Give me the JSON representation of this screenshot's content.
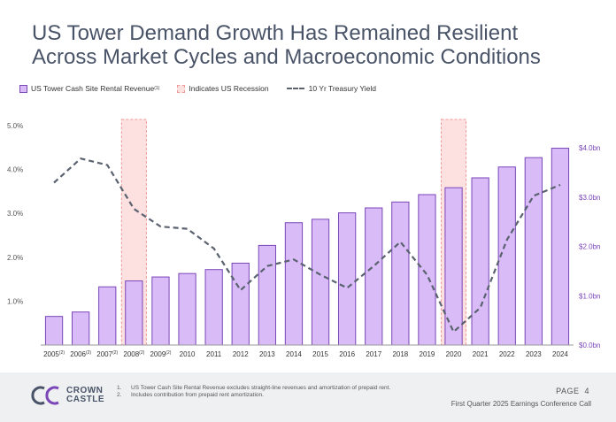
{
  "title": {
    "line1": "US Tower Demand Growth Has Remained Resilient",
    "line2": "Across Market Cycles and Macroeconomic Conditions"
  },
  "legend": {
    "revenue": "US Tower Cash Site Rental Revenue",
    "revenue_sup": "(1)",
    "recession": "Indicates US Recession",
    "treasury": "10 Yr Treasury Yield"
  },
  "colors": {
    "bar_fill": "#d9bcf7",
    "bar_stroke": "#7a46b8",
    "recession_fill": "#fde0e0",
    "recession_stroke": "#f19999",
    "line": "#5a6270",
    "right_axis": "#7a46b8"
  },
  "chart_data": {
    "type": "bar",
    "categories": [
      "2005",
      "2006",
      "2007",
      "2008",
      "2009",
      "2010",
      "2011",
      "2012",
      "2013",
      "2014",
      "2015",
      "2016",
      "2017",
      "2018",
      "2019",
      "2020",
      "2021",
      "2022",
      "2023",
      "2024"
    ],
    "category_sups": [
      "(2)",
      "(2)",
      "(2)",
      "(2)",
      "(2)",
      "",
      "",
      "",
      "",
      "",
      "",
      "",
      "",
      "",
      "",
      "",
      "",
      "",
      "",
      ""
    ],
    "series": [
      {
        "name": "US Tower Cash Site Rental Revenue",
        "type": "bar",
        "axis": "right",
        "values": [
          0.58,
          0.67,
          1.18,
          1.3,
          1.38,
          1.45,
          1.53,
          1.66,
          2.02,
          2.48,
          2.55,
          2.68,
          2.78,
          2.9,
          3.05,
          3.19,
          3.39,
          3.61,
          3.8,
          3.99
        ]
      },
      {
        "name": "10 Yr Treasury Yield",
        "type": "line",
        "axis": "left",
        "values": [
          3.7,
          4.25,
          4.1,
          3.1,
          2.7,
          2.65,
          2.2,
          1.25,
          1.8,
          1.95,
          1.6,
          1.3,
          1.8,
          2.35,
          1.6,
          0.3,
          0.85,
          2.4,
          3.4,
          3.65
        ]
      }
    ],
    "recessions": [
      "2008",
      "2020"
    ],
    "left_axis": {
      "ticks": [
        "1.0%",
        "2.0%",
        "3.0%",
        "4.0%",
        "5.0%"
      ],
      "ylim": [
        0,
        5
      ]
    },
    "right_axis": {
      "ticks": [
        "$0.0bn",
        "$1.0bn",
        "$2.0bn",
        "$3.0bn",
        "$4.0bn"
      ],
      "ylim": [
        0,
        4
      ]
    },
    "grid": false,
    "legend_position": "top-left"
  },
  "footer": {
    "logo_line1": "CROWN",
    "logo_line2": "CASTLE",
    "notes": [
      {
        "num": "1.",
        "text": "US Tower Cash Site Rental Revenue excludes straight-line revenues and amortization of prepaid rent."
      },
      {
        "num": "2.",
        "text": "Includes contribution from prepaid rent amortization."
      }
    ],
    "page_label": "PAGE",
    "page_number": "4",
    "conference": "First Quarter 2025 Earnings Conference Call"
  }
}
